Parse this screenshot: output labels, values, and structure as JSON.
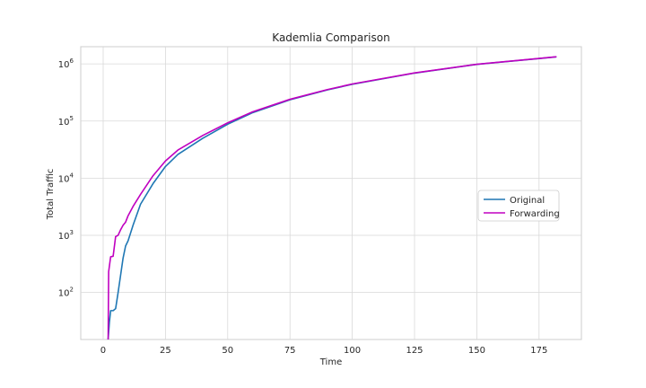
{
  "chart_data": {
    "type": "line",
    "title": "Kademlia Comparison",
    "xlabel": "Time",
    "ylabel": "Total Traffic",
    "xlim": [
      -9,
      192
    ],
    "ylim": [
      15,
      2000000
    ],
    "yscale": "log",
    "xticks": [
      0,
      25,
      50,
      75,
      100,
      125,
      150,
      175
    ],
    "yticks": [
      100,
      1000,
      10000,
      100000,
      1000000
    ],
    "ytick_labels": [
      {
        "base": "10",
        "exp": "2"
      },
      {
        "base": "10",
        "exp": "3"
      },
      {
        "base": "10",
        "exp": "4"
      },
      {
        "base": "10",
        "exp": "5"
      },
      {
        "base": "10",
        "exp": "6"
      }
    ],
    "grid": true,
    "legend_position": "center-right",
    "series": [
      {
        "name": "Original",
        "color": "#1f77b4",
        "x": [
          2,
          2.5,
          3,
          4,
          5,
          6,
          7,
          8,
          9,
          10,
          12,
          15,
          20,
          25,
          30,
          40,
          50,
          60,
          75,
          90,
          100,
          125,
          150,
          175,
          182
        ],
        "y": [
          15,
          30,
          48,
          48,
          52,
          100,
          200,
          400,
          650,
          800,
          1500,
          3500,
          8000,
          16000,
          26000,
          50000,
          88000,
          140000,
          235000,
          350000,
          440000,
          690000,
          980000,
          1240000,
          1330000
        ]
      },
      {
        "name": "Forwarding",
        "color": "#c000c0",
        "x": [
          2,
          2.2,
          3,
          4,
          5,
          6,
          7,
          8,
          9,
          10,
          12,
          15,
          20,
          25,
          30,
          40,
          50,
          60,
          75,
          90,
          100,
          125,
          150,
          175,
          182
        ],
        "y": [
          15,
          230,
          420,
          430,
          950,
          1000,
          1250,
          1500,
          1700,
          2200,
          3200,
          5200,
          11000,
          20000,
          31000,
          56000,
          93000,
          145000,
          240000,
          355000,
          445000,
          695000,
          985000,
          1245000,
          1335000
        ]
      }
    ]
  }
}
